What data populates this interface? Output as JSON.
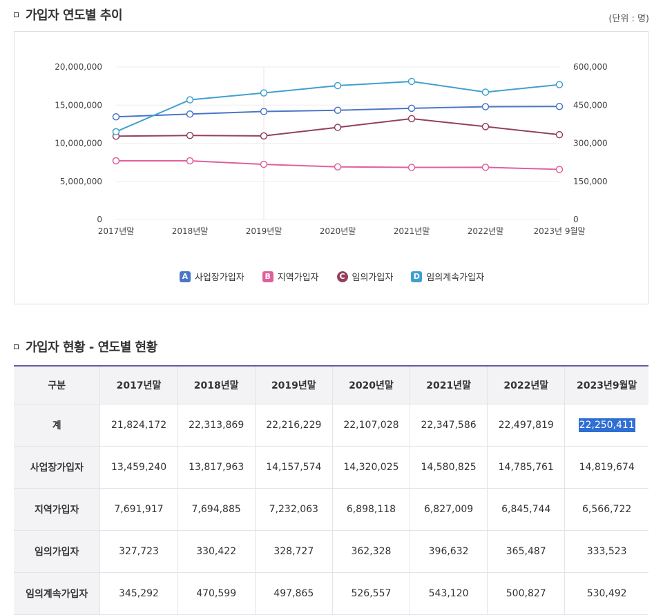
{
  "section1": {
    "title": "가입자 연도별 추이",
    "unit": "(단위 : 명)"
  },
  "section2": {
    "title": "가입자 현황 - 연도별 현황"
  },
  "chart_data": {
    "type": "line",
    "categories": [
      "2017년말",
      "2018년말",
      "2019년말",
      "2020년말",
      "2021년말",
      "2022년말",
      "2023년 9월말"
    ],
    "left_axis": {
      "ticks": [
        "0",
        "5,000,000",
        "10,000,000",
        "15,000,000",
        "20,000,000"
      ],
      "ylim": [
        0,
        20000000
      ]
    },
    "right_axis": {
      "ticks": [
        "0",
        "150,000",
        "300,000",
        "450,000",
        "600,000"
      ],
      "ylim": [
        0,
        600000
      ]
    },
    "grid": true,
    "legend_position": "bottom-center",
    "series": [
      {
        "letter": "A",
        "name": "사업장가입자",
        "color": "#4a76c6",
        "axis": "left",
        "shape": "square",
        "values": [
          13459240,
          13817963,
          14157574,
          14320025,
          14580825,
          14785761,
          14819674
        ]
      },
      {
        "letter": "B",
        "name": "지역가입자",
        "color": "#e0609a",
        "axis": "left",
        "shape": "square",
        "values": [
          7691917,
          7694885,
          7232063,
          6898118,
          6827009,
          6845744,
          6566722
        ]
      },
      {
        "letter": "C",
        "name": "임의가입자",
        "color": "#93405f",
        "axis": "right",
        "shape": "round",
        "values": [
          327723,
          330422,
          328727,
          362328,
          396632,
          365487,
          333523
        ]
      },
      {
        "letter": "D",
        "name": "임의계속가입자",
        "color": "#3fa0cf",
        "axis": "right",
        "shape": "square",
        "values": [
          345292,
          470599,
          497865,
          526557,
          543120,
          500827,
          530492
        ]
      }
    ]
  },
  "table": {
    "headers": [
      "구분",
      "2017년말",
      "2018년말",
      "2019년말",
      "2020년말",
      "2021년말",
      "2022년말",
      "2023년9월말"
    ],
    "rows": [
      [
        "계",
        "21,824,172",
        "22,313,869",
        "22,216,229",
        "22,107,028",
        "22,347,586",
        "22,497,819",
        "22,250,411"
      ],
      [
        "사업장가입자",
        "13,459,240",
        "13,817,963",
        "14,157,574",
        "14,320,025",
        "14,580,825",
        "14,785,761",
        "14,819,674"
      ],
      [
        "지역가입자",
        "7,691,917",
        "7,694,885",
        "7,232,063",
        "6,898,118",
        "6,827,009",
        "6,845,744",
        "6,566,722"
      ],
      [
        "임의가입자",
        "327,723",
        "330,422",
        "328,727",
        "362,328",
        "396,632",
        "365,487",
        "333,523"
      ],
      [
        "임의계속가입자",
        "345,292",
        "470,599",
        "497,865",
        "526,557",
        "543,120",
        "500,827",
        "530,492"
      ]
    ],
    "highlight": {
      "row": 0,
      "col": 7
    }
  }
}
